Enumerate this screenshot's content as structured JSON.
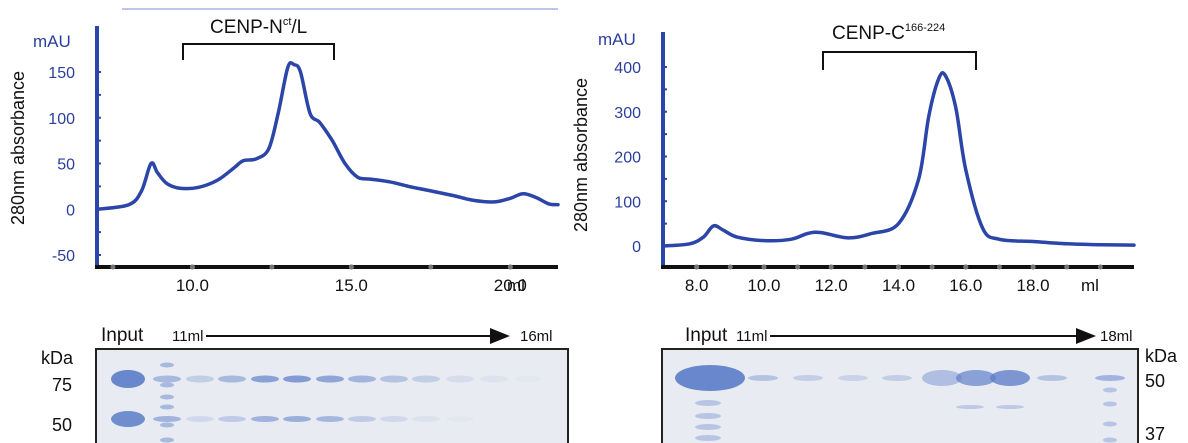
{
  "colors": {
    "trace": "#2b45a8",
    "axis_label": "#2a3f9c",
    "band": "#5b7cc8",
    "gel_bg": "#e8ebf2"
  },
  "chart_data": [
    {
      "type": "line",
      "bracket_label": "CENP-N",
      "bracket_label_sup": "ct",
      "bracket_label_suffix": "/L",
      "unit_label": "mAU",
      "ylabel": "280nm absorbance",
      "xunit": "ml",
      "xlim": [
        7.0,
        21.5
      ],
      "ylim": [
        -50,
        175
      ],
      "yticks": [
        "150",
        "100",
        "50",
        "0",
        "-50"
      ],
      "xticks": [
        "10.0",
        "15.0",
        "20.0"
      ],
      "bracket_range": [
        10.3,
        16.2
      ],
      "x": [
        7.0,
        8.0,
        8.4,
        8.7,
        8.9,
        9.2,
        9.6,
        10.2,
        10.8,
        11.3,
        11.6,
        12.0,
        12.4,
        12.7,
        13.0,
        13.2,
        13.4,
        13.7,
        14.0,
        14.4,
        14.8,
        15.2,
        15.6,
        16.2,
        16.8,
        17.5,
        18.2,
        18.8,
        19.5,
        20.0,
        20.4,
        20.8,
        21.2,
        21.5
      ],
      "y": [
        0,
        5,
        20,
        50,
        40,
        28,
        23,
        24,
        32,
        45,
        53,
        55,
        66,
        105,
        155,
        158,
        150,
        105,
        95,
        75,
        50,
        35,
        33,
        30,
        25,
        20,
        15,
        10,
        8,
        12,
        17,
        13,
        6,
        5
      ],
      "series": [
        {
          "name": ""
        }
      ]
    },
    {
      "type": "line",
      "bracket_label": "CENP-C",
      "bracket_label_sup": "166-224",
      "bracket_label_suffix": "",
      "unit_label": "mAU",
      "ylabel": "280nm absorbance",
      "xunit": "ml",
      "xlim": [
        7.0,
        21.0
      ],
      "ylim": [
        0,
        420
      ],
      "yticks": [
        "400",
        "300",
        "200",
        "100",
        "0"
      ],
      "xticks": [
        "8.0",
        "10.0",
        "12.0",
        "14.0",
        "16.0",
        "18.0"
      ],
      "bracket_range": [
        12.0,
        16.8
      ],
      "x": [
        7.0,
        7.8,
        8.2,
        8.5,
        8.8,
        9.2,
        10.0,
        10.8,
        11.3,
        11.7,
        12.5,
        13.2,
        14.0,
        14.6,
        14.9,
        15.2,
        15.4,
        15.7,
        16.0,
        16.5,
        17.0,
        18.0,
        19.0,
        20.0,
        21.0
      ],
      "y": [
        0,
        5,
        20,
        45,
        35,
        20,
        12,
        15,
        28,
        30,
        18,
        28,
        50,
        150,
        290,
        375,
        380,
        310,
        170,
        40,
        15,
        10,
        5,
        3,
        2
      ],
      "series": [
        {
          "name": ""
        }
      ]
    }
  ],
  "gels": [
    {
      "input_label": "Input",
      "start_label": "11ml",
      "end_label": "16ml",
      "kda_label": "kDa",
      "markers": [
        "75",
        "50"
      ],
      "upper_band_intensity": [
        1.0,
        0.5,
        0.3,
        0.5,
        0.75,
        0.8,
        0.7,
        0.55,
        0.4,
        0.3,
        0.15,
        0.08,
        0.03
      ],
      "lower_band_intensity": [
        1.0,
        0.6,
        0.2,
        0.35,
        0.6,
        0.65,
        0.55,
        0.35,
        0.2,
        0.1,
        0.03,
        0.0,
        0.0
      ]
    },
    {
      "input_label": "Input",
      "start_label": "11ml",
      "end_label": "18ml",
      "kda_label": "kDa",
      "markers": [
        "50",
        "37"
      ],
      "upper_band_intensity": [
        1.0,
        0.4,
        0.3,
        0.25,
        0.3,
        0.45,
        0.75,
        0.85,
        0.4,
        0.0,
        0.55
      ]
    }
  ]
}
